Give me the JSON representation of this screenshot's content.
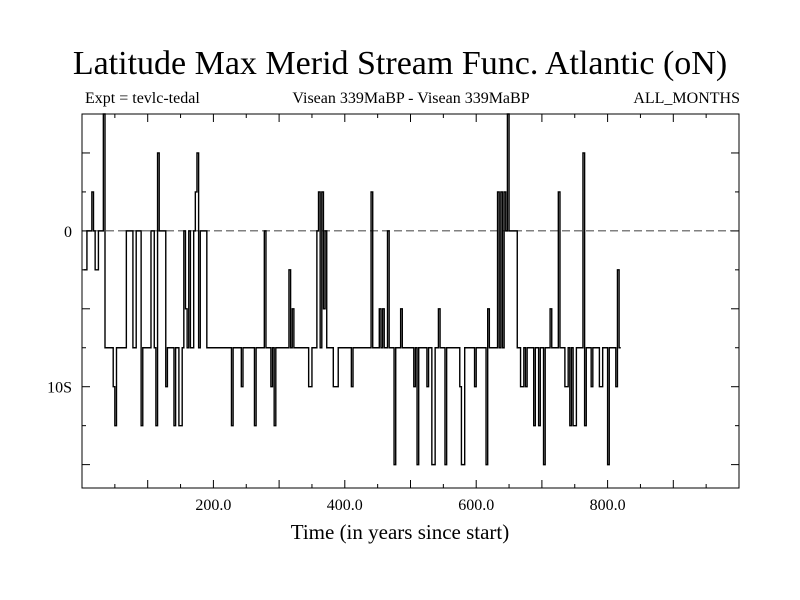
{
  "chart_data": {
    "type": "line",
    "title": "Latitude Max Merid Stream Func. Atlantic (oN)",
    "subtitle_left": "Expt = tevlc-tedal",
    "subtitle_center": "Visean 339MaBP - Visean 339MaBP",
    "subtitle_right": "ALL_MONTHS",
    "xlabel": "Time (in years since start)",
    "ylabel": "",
    "xlim": [
      0,
      1000
    ],
    "ylim": [
      -16.5,
      7.5
    ],
    "x_ticks": [
      {
        "value": 200,
        "label": "200.0"
      },
      {
        "value": 400,
        "label": "400.0"
      },
      {
        "value": 600,
        "label": "600.0"
      },
      {
        "value": 800,
        "label": "800.0"
      }
    ],
    "y_ticks": [
      {
        "value": 0,
        "label": "0"
      },
      {
        "value": -10,
        "label": "10S"
      }
    ],
    "zero_line": true,
    "series": [
      {
        "name": "latitude_max_streamfunction",
        "step": 2.5,
        "x_start": 2.5,
        "values": [
          -2.5,
          -2.5,
          0,
          0,
          0,
          2.5,
          0,
          -2.5,
          -2.5,
          0,
          0,
          0,
          7.5,
          -7.5,
          -7.5,
          -7.5,
          -7.5,
          -7.5,
          -10,
          -12.5,
          -7.5,
          -7.5,
          -7.5,
          -7.5,
          -7.5,
          -7.5,
          0,
          0,
          0,
          0,
          -7.5,
          -7.5,
          0,
          0,
          0,
          -12.5,
          -7.5,
          -7.5,
          -7.5,
          -7.5,
          -7.5,
          0,
          0,
          -7.5,
          -12.5,
          5,
          0,
          0,
          0,
          0,
          -10,
          -7.5,
          -7.5,
          -7.5,
          -7.5,
          -12.5,
          -7.5,
          -7.5,
          -12.5,
          -12.5,
          -7.5,
          0,
          -5,
          -7.5,
          0,
          -7.5,
          -7.5,
          0,
          2.5,
          5,
          -7.5,
          0,
          0,
          0,
          0,
          -7.5,
          -7.5,
          -7.5,
          -7.5,
          -7.5,
          -7.5,
          -7.5,
          -7.5,
          -7.5,
          -7.5,
          -7.5,
          -7.5,
          -7.5,
          -7.5,
          -7.5,
          -12.5,
          -7.5,
          -7.5,
          -7.5,
          -7.5,
          -7.5,
          -10,
          -7.5,
          -7.5,
          -7.5,
          -7.5,
          -7.5,
          -7.5,
          -7.5,
          -12.5,
          -7.5,
          -7.5,
          -7.5,
          -7.5,
          -7.5,
          0,
          -7.5,
          -7.5,
          -7.5,
          -10,
          -7.5,
          -12.5,
          -7.5,
          -7.5,
          -7.5,
          -7.5,
          -7.5,
          -7.5,
          -7.5,
          -7.5,
          -2.5,
          -7.5,
          -5,
          -7.5,
          -7.5,
          -7.5,
          -7.5,
          -7.5,
          -7.5,
          -7.5,
          -7.5,
          -7.5,
          -10,
          -10,
          -7.5,
          -7.5,
          -7.5,
          0,
          2.5,
          -7.5,
          2.5,
          -5,
          0,
          -7.5,
          -7.5,
          -7.5,
          -7.5,
          -10,
          -10,
          -10,
          -7.5,
          -7.5,
          -7.5,
          -7.5,
          -7.5,
          -7.5,
          -7.5,
          -7.5,
          -10,
          -7.5,
          -7.5,
          -7.5,
          -7.5,
          -7.5,
          -7.5,
          -7.5,
          -7.5,
          -7.5,
          -7.5,
          -7.5,
          2.5,
          -7.5,
          -7.5,
          -7.5,
          -7.5,
          -5,
          -7.5,
          -5,
          -7.5,
          -7.5,
          0,
          -7.5,
          -7.5,
          -7.5,
          -15,
          -7.5,
          -7.5,
          -7.5,
          -5,
          -7.5,
          -7.5,
          -7.5,
          -7.5,
          -7.5,
          -7.5,
          -7.5,
          -10,
          -7.5,
          -15,
          -7.5,
          -7.5,
          -7.5,
          -7.5,
          -7.5,
          -10,
          -7.5,
          -7.5,
          -15,
          -15,
          -7.5,
          -7.5,
          -5,
          -7.5,
          -7.5,
          -7.5,
          -15,
          -7.5,
          -7.5,
          -7.5,
          -7.5,
          -7.5,
          -7.5,
          -7.5,
          -7.5,
          -10,
          -15,
          -15,
          -7.5,
          -7.5,
          -7.5,
          -7.5,
          -7.5,
          -7.5,
          -10,
          -7.5,
          -7.5,
          -7.5,
          -7.5,
          -7.5,
          -7.5,
          -15,
          -5,
          -7.5,
          -7.5,
          -7.5,
          -7.5,
          -7.5,
          2.5,
          -7.5,
          2.5,
          -7.5,
          2.5,
          0,
          7.5,
          0,
          0,
          0,
          0,
          0,
          -7.5,
          -7.5,
          -10,
          -10,
          -7.5,
          -10,
          -7.5,
          -7.5,
          -7.5,
          -7.5,
          -12.5,
          -7.5,
          -7.5,
          -12.5,
          -7.5,
          -7.5,
          -15,
          -7.5,
          -7.5,
          -7.5,
          -5,
          -7.5,
          -7.5,
          -7.5,
          -7.5,
          2.5,
          -7.5,
          -7.5,
          -7.5,
          -10,
          -10,
          -7.5,
          -12.5,
          -7.5,
          -12.5,
          -12.5,
          -7.5,
          -7.5,
          -7.5,
          -7.5,
          5,
          -12.5,
          -7.5,
          -7.5,
          -7.5,
          -10,
          -7.5,
          -7.5,
          -7.5,
          -7.5,
          -10,
          -10,
          -7.5,
          -7.5,
          -7.5,
          -15,
          -7.5,
          -7.5,
          -7.5,
          -7.5,
          -10,
          -2.5,
          -7.5
        ]
      }
    ]
  }
}
